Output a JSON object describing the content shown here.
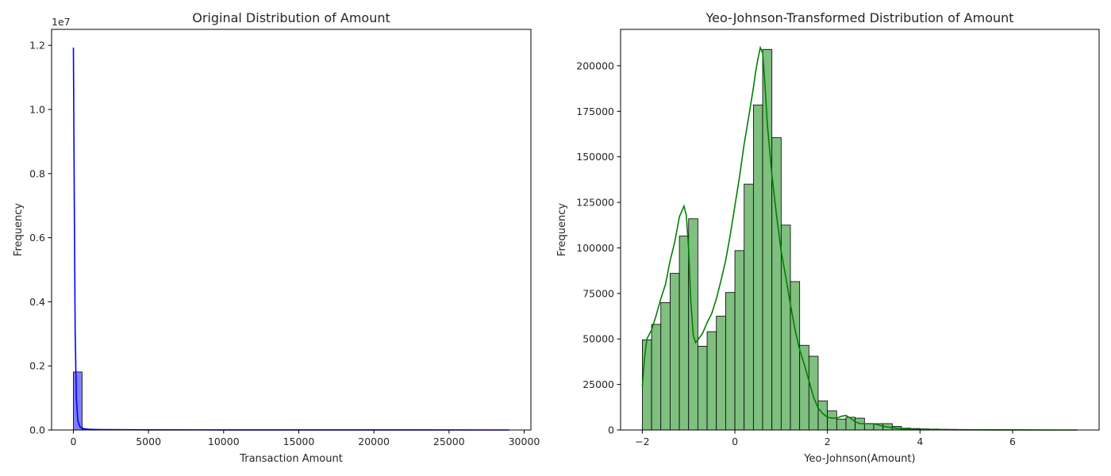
{
  "chart_data": [
    {
      "type": "bar",
      "title": "Original Distribution of Amount",
      "xlabel": "Transaction Amount",
      "ylabel": "Frequency",
      "y_offset_label": "1e7",
      "xlim": [
        -1450,
        30450
      ],
      "ylim": [
        0,
        1.25
      ],
      "xticks": [
        0,
        5000,
        10000,
        15000,
        20000,
        25000,
        30000
      ],
      "xtick_labels": [
        "0",
        "5000",
        "10000",
        "15000",
        "20000",
        "25000",
        "30000"
      ],
      "yticks": [
        0.0,
        0.2,
        0.4,
        0.6,
        0.8,
        1.0,
        1.2
      ],
      "ytick_labels": [
        "0.0",
        "0.2",
        "0.4",
        "0.6",
        "0.8",
        "1.0",
        "1.2"
      ],
      "bar_color": "#7f7fff",
      "line_color": "#0000ff",
      "bins": {
        "x": [
          0,
          580
        ],
        "values": [
          0.181,
          0.003
        ]
      },
      "kde": {
        "x": [
          0,
          60,
          120,
          200,
          300,
          450,
          700,
          1000,
          2000,
          5000,
          10000,
          20000,
          29000
        ],
        "y": [
          1.193,
          0.72,
          0.31,
          0.1,
          0.028,
          0.009,
          0.004,
          0.002,
          0.001,
          0.0005,
          0.0003,
          0.0002,
          0.0001
        ]
      }
    },
    {
      "type": "bar",
      "title": "Yeo-Johnson-Transformed Distribution of Amount",
      "xlabel": "Yeo-Johnson(Amount)",
      "ylabel": "Frequency",
      "xlim": [
        -2.47,
        7.87
      ],
      "ylim": [
        0,
        220000
      ],
      "xticks": [
        -2,
        0,
        2,
        4,
        6
      ],
      "xtick_labels": [
        "−2",
        "0",
        "2",
        "4",
        "6"
      ],
      "yticks": [
        0,
        25000,
        50000,
        75000,
        100000,
        125000,
        150000,
        175000,
        200000
      ],
      "ytick_labels": [
        "0",
        "25000",
        "50000",
        "75000",
        "100000",
        "125000",
        "150000",
        "175000",
        "200000"
      ],
      "bar_color": "#7fbf7f",
      "line_color": "#008000",
      "bins": {
        "start": -2.0,
        "width": 0.2,
        "values": [
          49500,
          58000,
          70000,
          86000,
          106500,
          116000,
          46000,
          54000,
          62500,
          75500,
          98500,
          135000,
          178500,
          209000,
          160500,
          112500,
          81500,
          46500,
          40500,
          16000,
          10500,
          6000,
          7000,
          6500,
          3500,
          3500,
          3500,
          2000,
          1000,
          800,
          600,
          500,
          400,
          350,
          300,
          250,
          200,
          150,
          120,
          100,
          80,
          60,
          50,
          40,
          30,
          20,
          10
        ]
      },
      "kde": {
        "x": [
          -2.0,
          -1.95,
          -1.9,
          -1.8,
          -1.7,
          -1.6,
          -1.5,
          -1.4,
          -1.3,
          -1.2,
          -1.1,
          -1.05,
          -1.0,
          -0.95,
          -0.9,
          -0.85,
          -0.8,
          -0.7,
          -0.6,
          -0.5,
          -0.4,
          -0.3,
          -0.2,
          -0.1,
          0.0,
          0.1,
          0.2,
          0.3,
          0.4,
          0.45,
          0.5,
          0.55,
          0.6,
          0.65,
          0.7,
          0.8,
          0.9,
          1.0,
          1.1,
          1.2,
          1.3,
          1.4,
          1.5,
          1.6,
          1.7,
          1.8,
          1.9,
          2.0,
          2.1,
          2.2,
          2.3,
          2.4,
          2.5,
          2.6,
          2.7,
          2.8,
          2.9,
          3.0,
          3.1,
          3.2,
          3.4,
          3.6,
          4.0,
          4.5,
          5.0,
          6.0,
          7.0,
          7.4
        ],
        "y": [
          24000,
          40000,
          50000,
          55000,
          63000,
          72000,
          80000,
          93000,
          103000,
          117000,
          123000,
          118000,
          100000,
          70000,
          52000,
          48000,
          49500,
          53000,
          59000,
          64000,
          72000,
          82000,
          93000,
          107000,
          123000,
          139000,
          157000,
          172000,
          188000,
          197000,
          204000,
          210000,
          207000,
          190000,
          168000,
          140000,
          118000,
          98000,
          84000,
          69000,
          55000,
          44000,
          36000,
          27000,
          18000,
          12000,
          9000,
          7000,
          6500,
          6500,
          7500,
          8000,
          6500,
          4500,
          3500,
          3500,
          3500,
          3500,
          2800,
          2000,
          1200,
          700,
          300,
          150,
          80,
          40,
          20,
          10
        ]
      }
    }
  ]
}
